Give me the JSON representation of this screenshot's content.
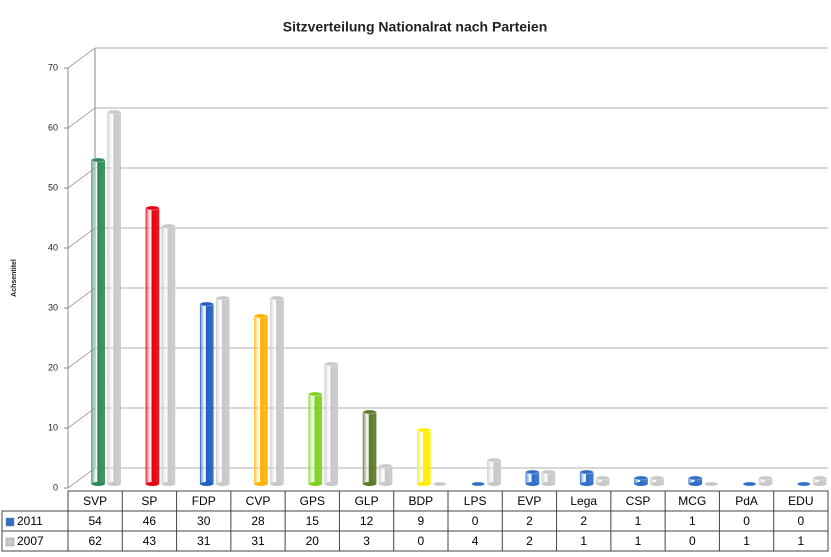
{
  "chart_data": {
    "type": "bar",
    "title": "Sitzverteilung Nationalrat nach Parteien",
    "y_label": "Achsentitel",
    "categories": [
      "SVP",
      "SP",
      "FDP",
      "CVP",
      "GPS",
      "GLP",
      "BDP",
      "LPS",
      "EVP",
      "Lega",
      "CSP",
      "MCG",
      "PdA",
      "EDU"
    ],
    "series": [
      {
        "name": "2011",
        "color": "#2f6fc6",
        "colors": [
          "#2e8b57",
          "#e8000d",
          "#1f5fc0",
          "#ffb300",
          "#7ed321",
          "#5a7a2a",
          "#ffee00",
          "#2f6fc6",
          "#2f6fc6",
          "#2f6fc6",
          "#2f6fc6",
          "#2f6fc6",
          "#2f6fc6",
          "#2f6fc6"
        ],
        "values": [
          54,
          46,
          30,
          28,
          15,
          12,
          9,
          0,
          2,
          2,
          1,
          1,
          0,
          0
        ]
      },
      {
        "name": "2007",
        "color": "#c8c8c8",
        "values": [
          62,
          43,
          31,
          31,
          20,
          3,
          0,
          4,
          2,
          1,
          1,
          0,
          1,
          1
        ]
      }
    ],
    "ylim": [
      0,
      70
    ],
    "yticks": [
      0,
      10,
      20,
      30,
      40,
      50,
      60,
      70
    ],
    "grid": true,
    "legend": "table"
  }
}
